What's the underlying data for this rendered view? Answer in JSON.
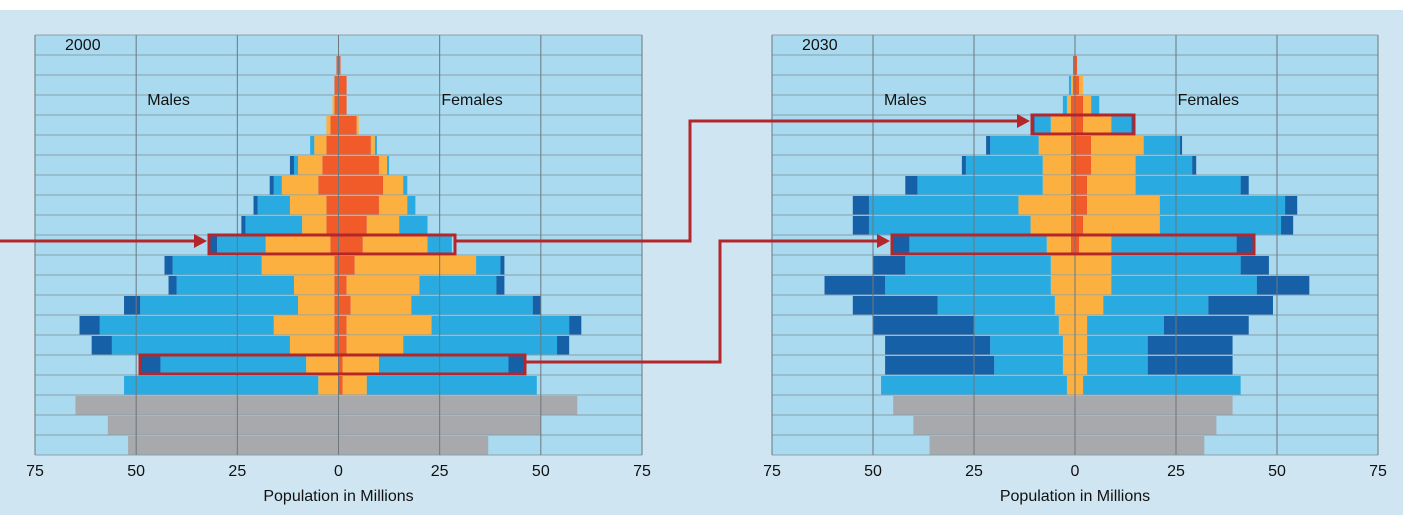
{
  "chart_data": [
    {
      "type": "pyramid",
      "title": "2000",
      "left_label": "Males",
      "right_label": "Females",
      "xlabel": "Population in Millions",
      "xlim": [
        -75,
        75
      ],
      "xticks": [
        {
          "value": -75,
          "label": "75"
        },
        {
          "value": -50,
          "label": "50"
        },
        {
          "value": -25,
          "label": "25"
        },
        0,
        25,
        50,
        75
      ],
      "grid": true,
      "males": [
        {
          "color": "#f15a29",
          "values": [
            null,
            null,
            null,
            null,
            null,
            1,
            1,
            1,
            1,
            1,
            2,
            3,
            3,
            5,
            4,
            3,
            2,
            1,
            1,
            0.5,
            null
          ]
        },
        {
          "color": "#fbb040",
          "values": [
            null,
            null,
            null,
            5,
            8,
            11,
            15,
            9,
            10,
            18,
            16,
            6,
            9,
            9,
            6,
            3,
            1,
            0.5,
            null,
            null,
            null
          ]
        },
        {
          "color": "#29abe2",
          "values": [
            null,
            null,
            null,
            48,
            36,
            44,
            43,
            39,
            29,
            22,
            12,
            14,
            8,
            2,
            1,
            1,
            null,
            null,
            null,
            null,
            null
          ]
        },
        {
          "color": "#1660a8",
          "values": [
            null,
            null,
            null,
            null,
            5,
            5,
            5,
            4,
            2,
            2,
            2,
            1,
            1,
            1,
            1,
            null,
            null,
            null,
            null,
            null,
            null
          ]
        },
        {
          "color": "#a7a9ac",
          "values": [
            52,
            57,
            65,
            null,
            null,
            null,
            null,
            null,
            null,
            null,
            null,
            null,
            null,
            null,
            null,
            null,
            null,
            null,
            null,
            null,
            null
          ]
        }
      ],
      "females": [
        {
          "color": "#f15a29",
          "values": [
            null,
            null,
            null,
            1,
            1,
            2,
            2,
            3,
            2,
            4,
            6,
            7,
            10,
            11,
            10,
            8,
            4.5,
            2,
            2,
            0.5,
            null
          ]
        },
        {
          "color": "#fbb040",
          "values": [
            null,
            null,
            null,
            6,
            9,
            14,
            21,
            15,
            18,
            30,
            16,
            8,
            7,
            5,
            2,
            1,
            0.5,
            null,
            null,
            null,
            null
          ]
        },
        {
          "color": "#29abe2",
          "values": [
            null,
            null,
            null,
            42,
            32,
            38,
            34,
            30,
            19,
            6,
            6,
            7,
            2,
            1,
            0.5,
            0.5,
            null,
            null,
            null,
            null,
            null
          ]
        },
        {
          "color": "#1660a8",
          "values": [
            null,
            null,
            null,
            null,
            4,
            3,
            3,
            2,
            2,
            1,
            null,
            null,
            null,
            null,
            null,
            null,
            null,
            null,
            null,
            null,
            null
          ]
        },
        {
          "color": "#a7a9ac",
          "values": [
            37,
            50,
            59,
            null,
            null,
            null,
            null,
            null,
            null,
            null,
            null,
            null,
            null,
            null,
            null,
            null,
            null,
            null,
            null,
            null,
            null
          ]
        }
      ]
    },
    {
      "type": "pyramid",
      "title": "2030",
      "left_label": "Males",
      "right_label": "Females",
      "xlabel": "Population in Millions",
      "xlim": [
        -75,
        75
      ],
      "xticks": [
        {
          "value": -75,
          "label": "75"
        },
        {
          "value": -50,
          "label": "50"
        },
        {
          "value": -25,
          "label": "25"
        },
        0,
        25,
        50,
        75
      ],
      "grid": true,
      "males": [
        {
          "color": "#f15a29",
          "values": [
            null,
            null,
            null,
            null,
            null,
            null,
            null,
            null,
            null,
            null,
            1,
            1,
            1,
            1,
            1,
            1,
            1,
            1,
            0.5,
            0.5,
            null
          ]
        },
        {
          "color": "#fbb040",
          "values": [
            null,
            null,
            null,
            2,
            3,
            3,
            4,
            5,
            6,
            6,
            6,
            10,
            13,
            7,
            7,
            8,
            5,
            1,
            0.5,
            null,
            null
          ]
        },
        {
          "color": "#29abe2",
          "values": [
            null,
            null,
            null,
            46,
            17,
            18,
            21,
            29,
            41,
            36,
            34,
            40,
            37,
            31,
            19,
            12,
            4,
            1,
            0.5,
            null,
            null
          ]
        },
        {
          "color": "#1660a8",
          "values": [
            null,
            null,
            null,
            null,
            27,
            26,
            25,
            21,
            15,
            8,
            4,
            4,
            4,
            3,
            1,
            1,
            0.5,
            null,
            null,
            null,
            null
          ]
        },
        {
          "color": "#a7a9ac",
          "values": [
            36,
            40,
            45,
            null,
            null,
            null,
            null,
            null,
            null,
            null,
            null,
            null,
            null,
            null,
            null,
            null,
            null,
            null,
            null,
            null,
            null
          ]
        }
      ],
      "females": [
        {
          "color": "#f15a29",
          "values": [
            null,
            null,
            null,
            null,
            null,
            null,
            null,
            null,
            null,
            null,
            1,
            2,
            3,
            3,
            4,
            4,
            2,
            2,
            1,
            0.5,
            null
          ]
        },
        {
          "color": "#fbb040",
          "values": [
            null,
            null,
            null,
            2,
            3,
            3,
            3,
            7,
            9,
            9,
            8,
            19,
            18,
            12,
            11,
            13,
            7,
            2,
            1,
            null,
            null
          ]
        },
        {
          "color": "#29abe2",
          "values": [
            null,
            null,
            null,
            39,
            15,
            15,
            19,
            26,
            36,
            32,
            31,
            30,
            31,
            26,
            14,
            9,
            5,
            2,
            null,
            null,
            null
          ]
        },
        {
          "color": "#1660a8",
          "values": [
            null,
            null,
            null,
            null,
            21,
            21,
            21,
            16,
            13,
            7,
            4,
            3,
            3,
            2,
            1,
            0.5,
            0.5,
            null,
            null,
            null,
            null
          ]
        },
        {
          "color": "#a7a9ac",
          "values": [
            32,
            35,
            39,
            null,
            null,
            null,
            null,
            null,
            null,
            null,
            null,
            null,
            null,
            null,
            null,
            null,
            null,
            null,
            null,
            null,
            null
          ]
        }
      ]
    }
  ]
}
